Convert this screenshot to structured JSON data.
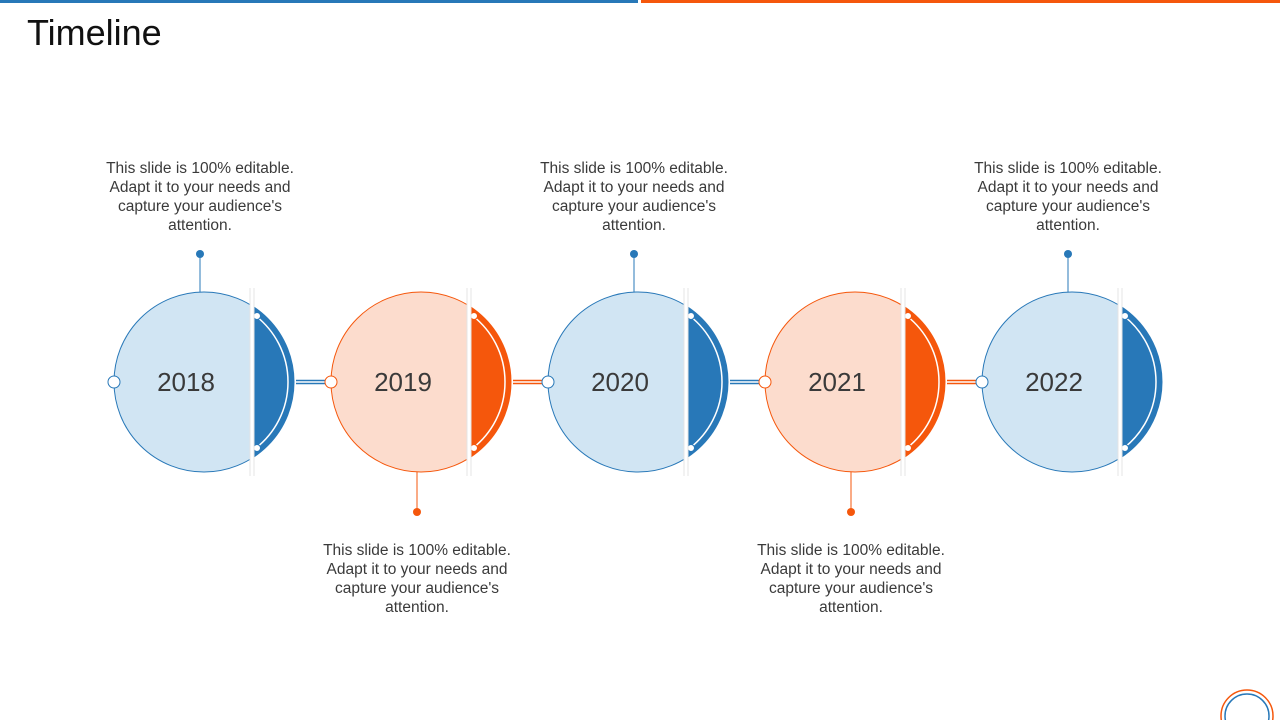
{
  "slide": {
    "title": "Timeline"
  },
  "colors": {
    "blue": "#2878b8",
    "blue_light": "#d1e5f3",
    "orange": "#f5570c",
    "orange_light": "#fcdccd",
    "text": "#3a3a3a"
  },
  "milestones": [
    {
      "year": "2018",
      "theme": "blue",
      "description": "This slide is 100% editable. Adapt it to your needs and capture your audience's attention.",
      "placement": "top"
    },
    {
      "year": "2019",
      "theme": "orange",
      "description": "This slide is 100% editable. Adapt it to your needs and capture your audience's attention.",
      "placement": "bottom"
    },
    {
      "year": "2020",
      "theme": "blue",
      "description": "This slide is 100% editable. Adapt it to your needs and capture your audience's attention.",
      "placement": "top"
    },
    {
      "year": "2021",
      "theme": "orange",
      "description": "This slide is 100% editable. Adapt it to your needs and capture your audience's attention.",
      "placement": "bottom"
    },
    {
      "year": "2022",
      "theme": "blue",
      "description": "This slide is 100% editable. Adapt it to your needs and capture your audience's attention.",
      "placement": "top"
    }
  ]
}
